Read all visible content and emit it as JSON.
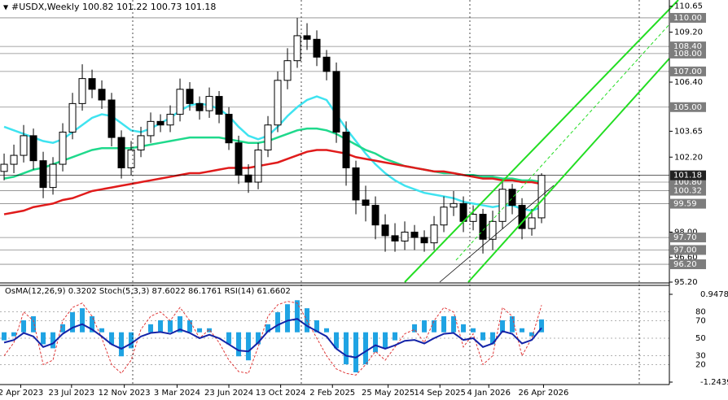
{
  "chart_data": [
    {
      "type": "candlestick",
      "title": "#USDX,Weekly  100.82 101.22 100.73 101.18",
      "xlim": [
        -0.42,
        68.08
      ],
      "ylim": [
        95.2,
        111.0
      ],
      "yticks": [
        {
          "value": 95.2,
          "label": "95.20"
        },
        {
          "value": 96.6,
          "label": "96.60"
        },
        {
          "value": 98.0,
          "label": "98.00"
        },
        {
          "value": 102.2,
          "label": "102.20"
        },
        {
          "value": 103.65,
          "label": "103.65"
        },
        {
          "value": 106.4,
          "label": "106.40"
        },
        {
          "value": 109.2,
          "label": "109.20"
        },
        {
          "value": 110.65,
          "label": "110.65"
        }
      ],
      "levels": [
        {
          "value": 110,
          "label": "110.00"
        },
        {
          "value": 108.4,
          "label": "108.40"
        },
        {
          "value": 108,
          "label": "108.00"
        },
        {
          "value": 107,
          "label": "107.00"
        },
        {
          "value": 105,
          "label": "105.00"
        },
        {
          "value": 100.8,
          "label": "100.80"
        },
        {
          "value": 100.32,
          "label": "100.32"
        },
        {
          "value": 99.59,
          "label": "99.59"
        },
        {
          "value": 97.7,
          "label": "97.70"
        },
        {
          "value": 97,
          "label": "97.00"
        },
        {
          "value": 96.2,
          "label": "96.20"
        }
      ],
      "last": {
        "value": 101.18,
        "label": "101.18"
      },
      "xticks": [
        {
          "value": 1.7,
          "label": "2 Apr 2023"
        },
        {
          "value": 6.9,
          "label": "23 Jul 2023"
        },
        {
          "value": 12.3,
          "label": "12 Nov 2023"
        },
        {
          "value": 17.7,
          "label": "3 Mar 2024"
        },
        {
          "value": 23.0,
          "label": "23 Jun 2024"
        },
        {
          "value": 28.3,
          "label": "13 Oct 2024"
        },
        {
          "value": 33.6,
          "label": "2 Feb 2025"
        },
        {
          "value": 39.3,
          "label": "25 May 2025"
        },
        {
          "value": 44.6,
          "label": "14 Sep 2025"
        },
        {
          "value": 49.6,
          "label": "4 Jan 2026"
        },
        {
          "value": 55.2,
          "label": "26 Apr 2026"
        }
      ],
      "open": [
        101.4,
        101.8,
        102.3,
        103.4,
        102.0,
        100.5,
        101.8,
        103.6,
        105.2,
        106.6,
        106.0,
        105.4,
        103.3,
        101.6,
        102.6,
        103.4,
        104.2,
        104.0,
        104.6,
        106.0,
        105.2,
        104.8,
        105.6,
        104.6,
        103.0,
        101.2,
        100.8,
        102.6,
        104.0,
        106.5,
        107.6,
        109.0,
        108.8,
        107.8,
        107.0,
        103.6,
        101.6,
        99.8,
        99.5,
        98.4,
        97.8,
        97.5,
        98.0,
        97.7,
        97.4,
        98.4,
        99.4,
        99.6,
        98.6,
        99.0,
        97.6,
        98.6,
        100.4,
        99.5,
        98.2,
        98.8
      ],
      "high": [
        102.4,
        102.9,
        104.0,
        103.8,
        102.5,
        102.2,
        104.1,
        105.8,
        107.4,
        107.1,
        106.5,
        105.8,
        103.7,
        103.1,
        103.9,
        104.7,
        104.6,
        105.1,
        106.6,
        106.4,
        105.6,
        106.1,
        105.9,
        105.0,
        103.4,
        101.8,
        103.0,
        104.5,
        107.0,
        108.3,
        110.0,
        109.7,
        109.3,
        108.2,
        107.5,
        104.2,
        102.0,
        100.6,
        100.0,
        99.0,
        98.5,
        98.6,
        98.4,
        98.1,
        98.9,
        100.0,
        100.3,
        100.0,
        99.5,
        99.3,
        99.2,
        100.8,
        100.7,
        99.9,
        99.3,
        101.3
      ],
      "low": [
        100.9,
        101.3,
        101.9,
        101.5,
        99.9,
        100.1,
        101.4,
        103.2,
        104.8,
        105.5,
        104.9,
        102.8,
        101.0,
        101.2,
        102.2,
        103.0,
        103.6,
        103.6,
        104.2,
        104.8,
        104.3,
        104.4,
        104.1,
        102.6,
        100.7,
        100.2,
        100.4,
        102.2,
        103.6,
        106.0,
        107.2,
        108.2,
        107.3,
        106.5,
        103.0,
        100.6,
        99.0,
        98.6,
        97.6,
        96.9,
        96.9,
        97.0,
        97.0,
        96.9,
        97.0,
        98.0,
        98.9,
        98.0,
        98.1,
        96.8,
        97.0,
        98.2,
        99.0,
        97.6,
        97.8,
        98.5
      ],
      "close": [
        101.8,
        102.3,
        103.4,
        102.0,
        100.5,
        101.8,
        103.6,
        105.2,
        106.6,
        106.0,
        105.4,
        103.3,
        101.6,
        102.6,
        103.4,
        104.2,
        104.0,
        104.6,
        106.0,
        105.2,
        104.8,
        105.6,
        104.6,
        103.0,
        101.2,
        100.8,
        102.6,
        104.0,
        106.5,
        107.6,
        109.0,
        108.8,
        107.8,
        107.0,
        103.6,
        101.6,
        99.8,
        99.5,
        98.4,
        97.8,
        97.5,
        98.0,
        97.7,
        97.4,
        98.4,
        99.4,
        99.6,
        98.6,
        99.0,
        97.6,
        98.6,
        100.4,
        99.5,
        98.2,
        98.8,
        101.18
      ],
      "series": [
        {
          "color": "#3fe3f0",
          "values": [
            103.9,
            103.7,
            103.5,
            103.3,
            103.1,
            103.0,
            103.2,
            103.6,
            104.0,
            104.4,
            104.6,
            104.5,
            104.1,
            103.7,
            103.6,
            103.8,
            104.1,
            104.4,
            104.8,
            105.1,
            105.2,
            105.1,
            104.9,
            104.5,
            103.9,
            103.4,
            103.2,
            103.4,
            103.9,
            104.5,
            105.0,
            105.4,
            105.6,
            105.4,
            104.6,
            103.8,
            103.1,
            102.4,
            101.8,
            101.3,
            100.9,
            100.6,
            100.4,
            100.2,
            100.1,
            100.0,
            99.9,
            99.7,
            99.6,
            99.5,
            99.4,
            99.5,
            99.5,
            99.3,
            99.2,
            99.4
          ]
        },
        {
          "color": "#1fd98c",
          "values": [
            101.0,
            101.1,
            101.3,
            101.5,
            101.6,
            101.8,
            102.0,
            102.2,
            102.4,
            102.6,
            102.7,
            102.7,
            102.7,
            102.7,
            102.8,
            102.9,
            103.0,
            103.1,
            103.2,
            103.3,
            103.3,
            103.3,
            103.3,
            103.2,
            103.1,
            103.0,
            103.0,
            103.1,
            103.3,
            103.5,
            103.7,
            103.8,
            103.8,
            103.7,
            103.5,
            103.2,
            102.9,
            102.6,
            102.4,
            102.1,
            101.9,
            101.7,
            101.6,
            101.5,
            101.4,
            101.3,
            101.3,
            101.2,
            101.2,
            101.1,
            101.1,
            101.0,
            101.0,
            100.9,
            100.9,
            100.8
          ]
        },
        {
          "color": "#e01b1b",
          "values": [
            99.0,
            99.1,
            99.2,
            99.4,
            99.5,
            99.6,
            99.8,
            99.9,
            100.1,
            100.3,
            100.4,
            100.5,
            100.6,
            100.7,
            100.8,
            100.9,
            101.0,
            101.1,
            101.2,
            101.3,
            101.3,
            101.4,
            101.5,
            101.6,
            101.6,
            101.6,
            101.7,
            101.8,
            101.9,
            102.1,
            102.3,
            102.5,
            102.6,
            102.6,
            102.5,
            102.4,
            102.2,
            102.1,
            102.0,
            101.9,
            101.8,
            101.7,
            101.6,
            101.5,
            101.4,
            101.4,
            101.3,
            101.2,
            101.1,
            101.0,
            101.0,
            100.9,
            100.9,
            100.8,
            100.8,
            100.7
          ]
        }
      ]
    },
    {
      "type": "oscillator",
      "title": "OsMA(12,26,9) 0.3202  Stoch(5,3,3) 87.6022 86.1761  RSI(14) 61.6602",
      "xlim": [
        -0.42,
        68.08
      ],
      "ylim": [
        -1.2439,
        0.9478
      ],
      "yticks": [
        -1.2439,
        0.9478
      ],
      "y2lim": [
        0,
        100
      ],
      "y2ticks": [
        20,
        30,
        50,
        70,
        80
      ],
      "series": [
        {
          "color": "#1fa3e3",
          "values": [
            -0.2,
            -0.1,
            0.3,
            0.4,
            -0.3,
            -0.4,
            0.2,
            0.5,
            0.6,
            0.4,
            0.1,
            -0.3,
            -0.6,
            -0.4,
            0.0,
            0.2,
            0.3,
            0.3,
            0.4,
            0.3,
            0.1,
            0.1,
            0.0,
            -0.3,
            -0.6,
            -0.7,
            -0.3,
            0.2,
            0.5,
            0.7,
            0.8,
            0.6,
            0.3,
            0.1,
            -0.4,
            -0.8,
            -1.0,
            -0.8,
            -0.5,
            -0.4,
            -0.2,
            0.0,
            0.2,
            0.3,
            0.3,
            0.4,
            0.4,
            0.2,
            0.1,
            -0.2,
            -0.3,
            0.3,
            0.4,
            0.1,
            -0.1,
            0.3202
          ]
        },
        {
          "color": "#e03a3a",
          "axis": "y2",
          "values": [
            30,
            45,
            80,
            70,
            20,
            25,
            70,
            85,
            90,
            75,
            50,
            20,
            10,
            25,
            60,
            75,
            80,
            70,
            85,
            70,
            50,
            60,
            45,
            25,
            12,
            10,
            40,
            75,
            88,
            92,
            90,
            70,
            50,
            30,
            15,
            10,
            8,
            20,
            35,
            25,
            40,
            55,
            60,
            45,
            70,
            85,
            80,
            40,
            55,
            20,
            30,
            85,
            75,
            30,
            50,
            87.6022
          ]
        },
        {
          "color": "#1424a8",
          "axis": "y2",
          "values": [
            45,
            48,
            56,
            52,
            40,
            44,
            55,
            62,
            66,
            60,
            52,
            43,
            38,
            44,
            52,
            56,
            57,
            55,
            60,
            56,
            50,
            54,
            50,
            43,
            36,
            35,
            45,
            58,
            65,
            70,
            72,
            64,
            58,
            52,
            38,
            30,
            28,
            35,
            42,
            38,
            42,
            47,
            48,
            44,
            50,
            55,
            56,
            48,
            50,
            40,
            44,
            58,
            55,
            44,
            48,
            61.6602
          ]
        }
      ]
    }
  ]
}
